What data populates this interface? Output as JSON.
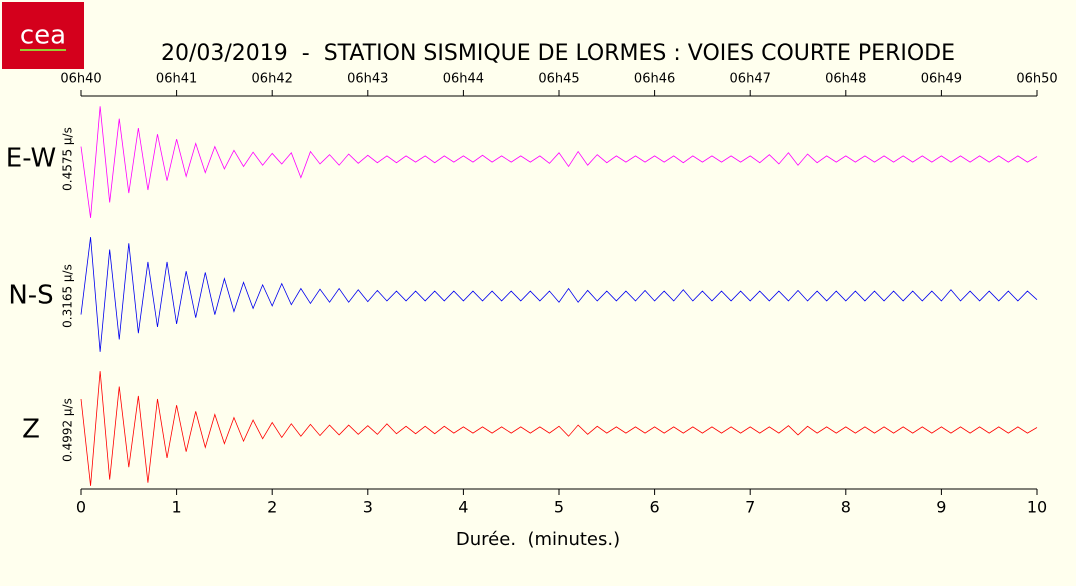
{
  "chart_data": {
    "type": "seismogram",
    "logo": "cea",
    "title": "20/03/2019  -  STATION SISMIQUE DE LORMES : VOIES COURTE PERIODE",
    "xlabel": "Durée.  (minutes.)",
    "xlim": [
      0,
      10
    ],
    "xticks": [
      0,
      1,
      2,
      3,
      4,
      5,
      6,
      7,
      8,
      9,
      10
    ],
    "x2ticks": [
      {
        "value": 0,
        "label": "06h40"
      },
      {
        "value": 1,
        "label": "06h41"
      },
      {
        "value": 2,
        "label": "06h42"
      },
      {
        "value": 3,
        "label": "06h43"
      },
      {
        "value": 4,
        "label": "06h44"
      },
      {
        "value": 5,
        "label": "06h45"
      },
      {
        "value": 6,
        "label": "06h46"
      },
      {
        "value": 7,
        "label": "06h47"
      },
      {
        "value": 8,
        "label": "06h48"
      },
      {
        "value": 9,
        "label": "06h49"
      },
      {
        "value": 10,
        "label": "06h50"
      }
    ],
    "ylim": [
      -1,
      1
    ],
    "x": [
      0,
      0.1,
      0.2,
      0.3,
      0.4,
      0.5,
      0.6,
      0.7,
      0.8,
      0.9,
      1,
      1.1,
      1.2,
      1.3,
      1.4,
      1.5,
      1.6,
      1.7,
      1.8,
      1.9,
      2,
      2.1,
      2.2,
      2.3,
      2.4,
      2.5,
      2.6,
      2.7,
      2.8,
      2.9,
      3,
      3.1,
      3.2,
      3.3,
      3.4,
      3.5,
      3.6,
      3.7,
      3.8,
      3.9,
      4,
      4.1,
      4.2,
      4.3,
      4.4,
      4.5,
      4.6,
      4.7,
      4.8,
      4.9,
      5,
      5.1,
      5.2,
      5.3,
      5.4,
      5.5,
      5.6,
      5.7,
      5.8,
      5.9,
      6,
      6.1,
      6.2,
      6.3,
      6.4,
      6.5,
      6.6,
      6.7,
      6.8,
      6.9,
      7,
      7.1,
      7.2,
      7.3,
      7.4,
      7.5,
      7.6,
      7.7,
      7.8,
      7.9,
      8,
      8.1,
      8.2,
      8.3,
      8.4,
      8.5,
      8.6,
      8.7,
      8.8,
      8.9,
      9,
      9.1,
      9.2,
      9.3,
      9.4,
      9.5,
      9.6,
      9.7,
      9.8,
      9.9,
      10
    ],
    "series": [
      {
        "name": "E-W",
        "scale_label": "0.4575 µ/s",
        "color": "#ff00ff",
        "values": [
          0.2,
          -0.95,
          0.85,
          -0.7,
          0.65,
          -0.55,
          0.5,
          -0.5,
          0.4,
          -0.35,
          0.32,
          -0.28,
          0.25,
          -0.22,
          0.2,
          -0.16,
          0.14,
          -0.12,
          0.11,
          -0.1,
          0.09,
          -0.08,
          0.1,
          -0.3,
          0.12,
          -0.08,
          0.07,
          -0.1,
          0.08,
          -0.07,
          0.06,
          -0.06,
          0.05,
          -0.06,
          0.05,
          -0.05,
          0.05,
          -0.06,
          0.05,
          -0.05,
          0.05,
          -0.05,
          0.06,
          -0.05,
          0.05,
          -0.05,
          0.05,
          -0.05,
          0.05,
          -0.07,
          0.1,
          -0.12,
          0.12,
          -0.1,
          0.07,
          -0.06,
          0.05,
          -0.05,
          0.05,
          -0.05,
          0.05,
          -0.05,
          0.05,
          -0.06,
          0.05,
          -0.05,
          0.05,
          -0.05,
          0.05,
          -0.05,
          0.05,
          -0.06,
          0.07,
          -0.08,
          0.1,
          -0.1,
          0.08,
          -0.06,
          0.05,
          -0.05,
          0.05,
          -0.05,
          0.05,
          -0.05,
          0.05,
          -0.05,
          0.05,
          -0.05,
          0.05,
          -0.05,
          0.05,
          -0.05,
          0.05,
          -0.05,
          0.05,
          -0.05,
          0.05,
          -0.05,
          0.05,
          -0.05,
          0.04
        ]
      },
      {
        "name": "N-S",
        "scale_label": "0.3165 µ/s",
        "color": "#0000ee",
        "values": [
          -0.3,
          0.95,
          -0.9,
          0.75,
          -0.7,
          0.85,
          -0.6,
          0.55,
          -0.5,
          0.55,
          -0.45,
          0.4,
          -0.35,
          0.38,
          -0.3,
          0.28,
          -0.25,
          0.22,
          -0.2,
          0.18,
          -0.16,
          0.2,
          -0.14,
          0.12,
          -0.12,
          0.11,
          -0.1,
          0.12,
          -0.1,
          0.1,
          -0.09,
          0.09,
          -0.08,
          0.08,
          -0.08,
          0.08,
          -0.08,
          0.08,
          -0.08,
          0.08,
          -0.08,
          0.08,
          -0.08,
          0.08,
          -0.08,
          0.08,
          -0.08,
          0.08,
          -0.08,
          0.08,
          -0.1,
          0.12,
          -0.1,
          0.09,
          -0.08,
          0.08,
          -0.08,
          0.08,
          -0.08,
          0.09,
          -0.08,
          0.08,
          -0.08,
          0.1,
          -0.08,
          0.08,
          -0.08,
          0.08,
          -0.08,
          0.08,
          -0.08,
          0.08,
          -0.08,
          0.08,
          -0.08,
          0.09,
          -0.08,
          0.08,
          -0.08,
          0.08,
          -0.08,
          0.08,
          -0.08,
          0.08,
          -0.08,
          0.08,
          -0.08,
          0.08,
          -0.08,
          0.08,
          -0.08,
          0.1,
          -0.08,
          0.08,
          -0.08,
          0.08,
          -0.08,
          0.08,
          -0.08,
          0.08,
          -0.06
        ]
      },
      {
        "name": "Z",
        "scale_label": "0.4992 µ/s",
        "color": "#ff0000",
        "values": [
          0.5,
          -0.9,
          0.95,
          -0.8,
          0.7,
          -0.6,
          0.55,
          -0.85,
          0.5,
          -0.45,
          0.4,
          -0.35,
          0.3,
          -0.28,
          0.25,
          -0.22,
          0.2,
          -0.18,
          0.16,
          -0.14,
          0.12,
          -0.12,
          0.1,
          -0.1,
          0.09,
          -0.09,
          0.08,
          -0.08,
          0.08,
          -0.07,
          0.07,
          -0.07,
          0.1,
          -0.06,
          0.06,
          -0.06,
          0.06,
          -0.06,
          0.06,
          -0.05,
          0.05,
          -0.05,
          0.05,
          -0.05,
          0.05,
          -0.05,
          0.05,
          -0.05,
          0.05,
          -0.05,
          0.06,
          -0.1,
          0.08,
          -0.07,
          0.06,
          -0.05,
          0.05,
          -0.05,
          0.05,
          -0.05,
          0.05,
          -0.05,
          0.05,
          -0.05,
          0.05,
          -0.05,
          0.05,
          -0.05,
          0.05,
          -0.05,
          0.05,
          -0.05,
          0.05,
          -0.05,
          0.07,
          -0.08,
          0.06,
          -0.05,
          0.05,
          -0.05,
          0.05,
          -0.05,
          0.05,
          -0.05,
          0.05,
          -0.05,
          0.05,
          -0.05,
          0.05,
          -0.05,
          0.05,
          -0.05,
          0.05,
          -0.05,
          0.05,
          -0.05,
          0.05,
          -0.05,
          0.05,
          -0.05,
          0.04
        ]
      }
    ]
  }
}
